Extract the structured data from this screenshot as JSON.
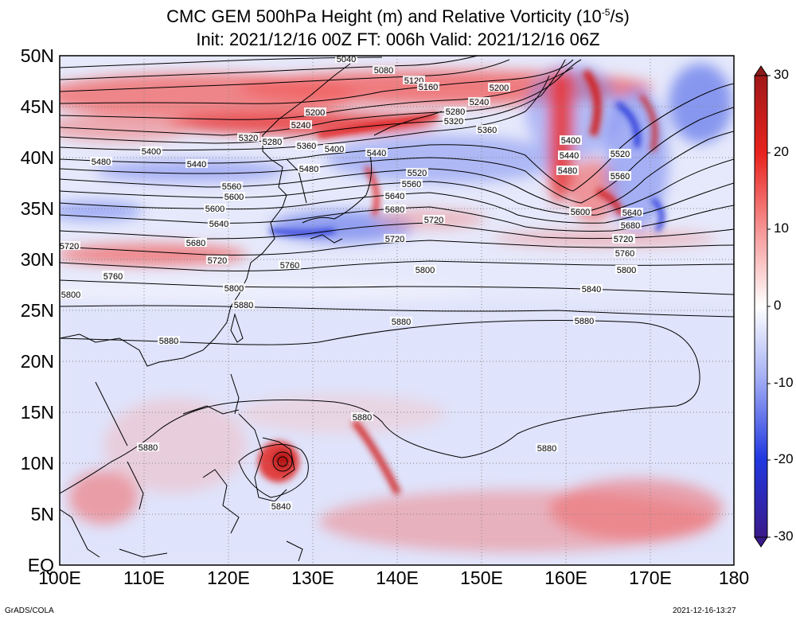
{
  "title": {
    "line1_pre": "CMC GEM 500hPa Height (m) and Relative Vorticity (10",
    "line1_sup": "-5",
    "line1_post": "/s)",
    "line2": "Init: 2021/12/16 00Z  FT: 006h  Valid: 2021/12/16 06Z"
  },
  "axes": {
    "lat_labels": [
      "50N",
      "45N",
      "40N",
      "35N",
      "30N",
      "25N",
      "20N",
      "15N",
      "10N",
      "5N",
      "EQ"
    ],
    "lon_labels": [
      "100E",
      "110E",
      "120E",
      "130E",
      "140E",
      "150E",
      "160E",
      "170E",
      "180"
    ]
  },
  "colorbar": {
    "labels": [
      "30",
      "20",
      "10",
      "0",
      "-10",
      "-20",
      "-30"
    ],
    "colors": {
      "max": "#8b1a1a",
      "pos": "#e8231f",
      "zero": "#ffffff",
      "neg": "#2038e0",
      "min": "#3a1a8a"
    }
  },
  "contours": {
    "labels": [
      "5040",
      "5080",
      "5120",
      "5160",
      "5200",
      "5240",
      "5200",
      "5240",
      "5280",
      "5320",
      "5280",
      "5320",
      "5360",
      "5360",
      "5400",
      "5400",
      "5440",
      "5480",
      "5440",
      "5400",
      "5440",
      "5480",
      "5520",
      "5480",
      "5520",
      "5560",
      "5520",
      "5560",
      "5600",
      "5640",
      "5600",
      "5680",
      "5640",
      "5720",
      "5680",
      "5720",
      "5760",
      "5720",
      "5760",
      "5800",
      "5800",
      "5800",
      "5840",
      "5840",
      "5880",
      "5880",
      "5880",
      "5880",
      "5880",
      "5840",
      "5400",
      "5440",
      "5480",
      "5520",
      "5560",
      "5600",
      "5640",
      "5680",
      "5720",
      "5760",
      "5800",
      "5840",
      "5880",
      "5880",
      "5800",
      "5760",
      "5720",
      "5680"
    ]
  },
  "credits": {
    "left": "GrADS/COLA",
    "right": "2021-12-16-13:27"
  }
}
